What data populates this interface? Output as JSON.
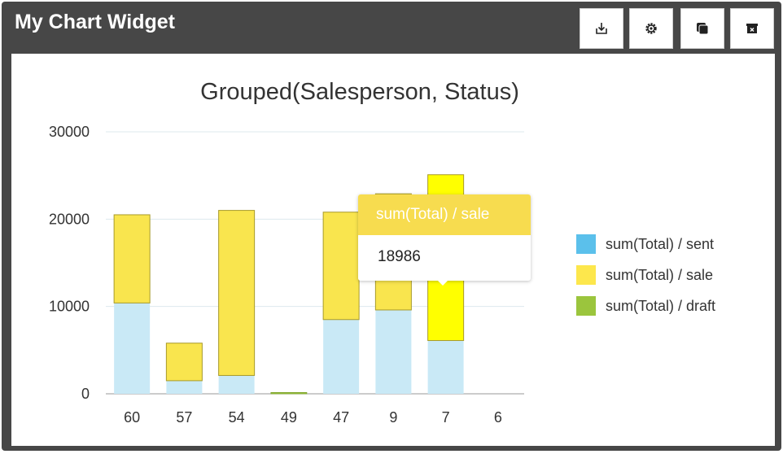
{
  "widget": {
    "title": "My Chart Widget",
    "toolbar": {
      "buttons": [
        {
          "name": "download-button",
          "icon": "download-icon"
        },
        {
          "name": "settings-button",
          "icon": "gear-icon"
        },
        {
          "name": "duplicate-button",
          "icon": "copy-icon"
        },
        {
          "name": "delete-button",
          "icon": "archive-delete-icon"
        }
      ]
    }
  },
  "tooltip": {
    "series": "sum(Total) / sale",
    "value": "18986"
  },
  "colors": {
    "header_bg": "#474747",
    "sent": "#c9e9f6",
    "sale": "#f9e54e",
    "sale_highlight": "#ffff00",
    "draft": "#9dc63c",
    "legend_sent": "#5bc0eb",
    "legend_sale": "#fde74c",
    "legend_draft": "#9bc53d"
  },
  "chart_data": {
    "type": "bar",
    "stacked": true,
    "title": "Grouped(Salesperson, Status)",
    "categories": [
      "60",
      "57",
      "54",
      "49",
      "47",
      "9",
      "7",
      "6"
    ],
    "ylim": [
      0,
      30000
    ],
    "yticks": [
      0,
      10000,
      20000,
      30000
    ],
    "grid": true,
    "legend_position": "right",
    "highlighted": {
      "series": "sum(Total) / sale",
      "category": "7"
    },
    "series": [
      {
        "name": "sum(Total) / sent",
        "values": [
          10400,
          1500,
          2100,
          0,
          8500,
          9600,
          6100,
          0
        ]
      },
      {
        "name": "sum(Total) / sale",
        "values": [
          10100,
          4300,
          18900,
          0,
          12300,
          13300,
          18986,
          0
        ]
      },
      {
        "name": "sum(Total) / draft",
        "values": [
          0,
          0,
          0,
          150,
          0,
          0,
          0,
          0
        ]
      }
    ]
  }
}
